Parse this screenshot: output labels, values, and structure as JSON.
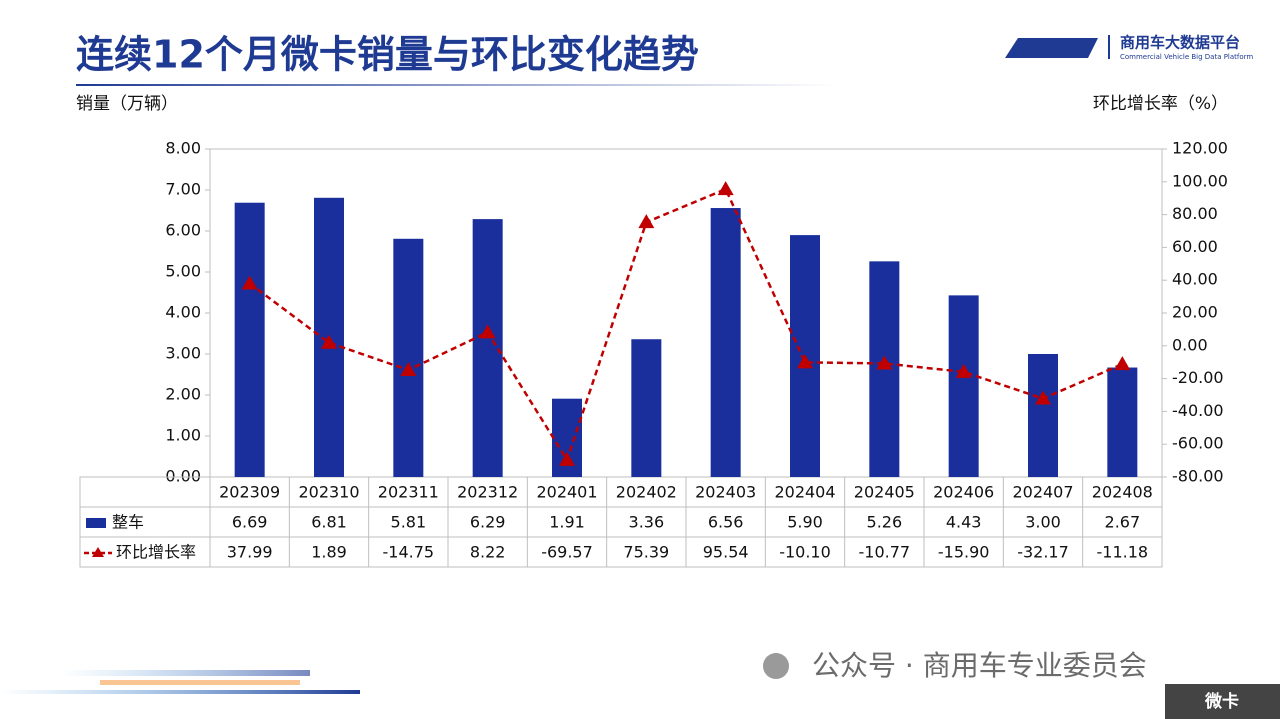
{
  "header": {
    "title": "连续12个月微卡销量与环比变化趋势",
    "logo_name": "商用车大数据平台",
    "logo_subtitle": "Commercial Vehicle Big Data Platform"
  },
  "chart_data": {
    "type": "bar",
    "y_label": "销量（万辆）",
    "y2_label": "环比增长率（%）",
    "categories": [
      "202309",
      "202310",
      "202311",
      "202312",
      "202401",
      "202402",
      "202403",
      "202404",
      "202405",
      "202406",
      "202407",
      "202408"
    ],
    "series": [
      {
        "name": "整车",
        "type": "bar",
        "color": "#1a2f9c",
        "values": [
          6.69,
          6.81,
          5.81,
          6.29,
          1.91,
          3.36,
          6.56,
          5.9,
          5.26,
          4.43,
          3.0,
          2.67
        ],
        "value_labels": [
          "6.69",
          "6.81",
          "5.81",
          "6.29",
          "1.91",
          "3.36",
          "6.56",
          "5.90",
          "5.26",
          "4.43",
          "3.00",
          "2.67"
        ]
      },
      {
        "name": "环比增长率",
        "type": "line",
        "axis": "y2",
        "color": "#c00000",
        "values": [
          37.99,
          1.89,
          -14.75,
          8.22,
          -69.57,
          75.39,
          95.54,
          -10.1,
          -10.77,
          -15.9,
          -32.17,
          -11.18
        ],
        "value_labels": [
          "37.99",
          "1.89",
          "-14.75",
          "8.22",
          "-69.57",
          "75.39",
          "95.54",
          "-10.10",
          "-10.77",
          "-15.90",
          "-32.17",
          "-11.18"
        ]
      }
    ],
    "ylim": [
      0,
      8
    ],
    "yticks": [
      {
        "value": 0,
        "label": "0.00"
      },
      {
        "value": 1,
        "label": "1.00"
      },
      {
        "value": 2,
        "label": "2.00"
      },
      {
        "value": 3,
        "label": "3.00"
      },
      {
        "value": 4,
        "label": "4.00"
      },
      {
        "value": 5,
        "label": "5.00"
      },
      {
        "value": 6,
        "label": "6.00"
      },
      {
        "value": 7,
        "label": "7.00"
      },
      {
        "value": 8,
        "label": "8.00"
      }
    ],
    "y2lim": [
      -80,
      120
    ],
    "y2ticks": [
      {
        "value": -80,
        "label": "-80.00"
      },
      {
        "value": -60,
        "label": "-60.00"
      },
      {
        "value": -40,
        "label": "-40.00"
      },
      {
        "value": -20,
        "label": "-20.00"
      },
      {
        "value": 0,
        "label": "0.00"
      },
      {
        "value": 20,
        "label": "20.00"
      },
      {
        "value": 40,
        "label": "40.00"
      },
      {
        "value": 60,
        "label": "60.00"
      },
      {
        "value": 80,
        "label": "80.00"
      },
      {
        "value": 100,
        "label": "100.00"
      },
      {
        "value": 120,
        "label": "120.00"
      }
    ],
    "grid": false
  },
  "footer": {
    "account": "公众号 · 商用车专业委员会",
    "tag": "微卡"
  }
}
